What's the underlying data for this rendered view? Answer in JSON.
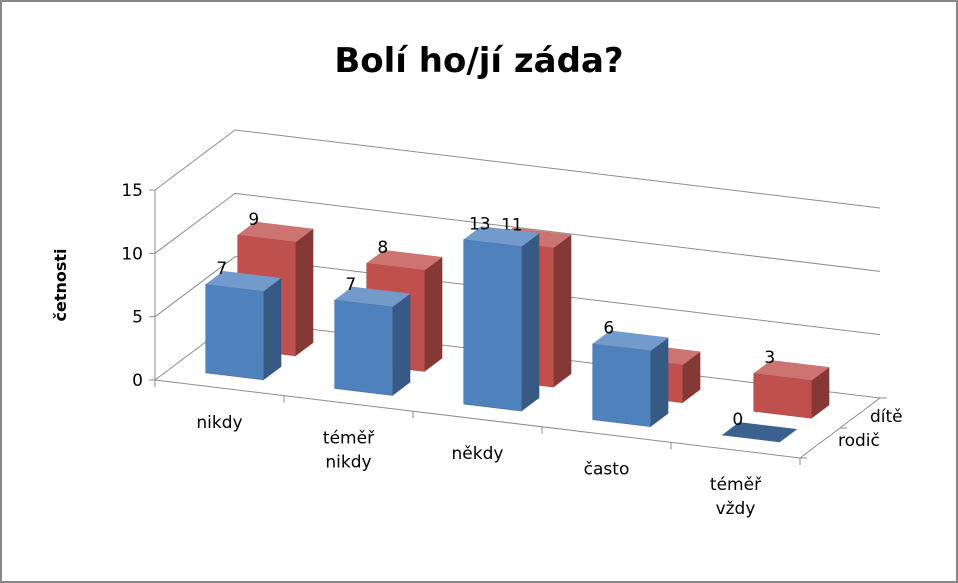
{
  "chart_data": {
    "type": "bar3d",
    "title": "Bolí ho/jí záda?",
    "ylabel": "četnosti",
    "categories": [
      "nikdy",
      "téměř nikdy",
      "někdy",
      "často",
      "téměř vždy"
    ],
    "series": [
      {
        "name": "rodič",
        "color": "#4f81bd",
        "values": [
          7,
          7,
          13,
          6,
          0
        ]
      },
      {
        "name": "dítě",
        "color": "#c0504d",
        "values": [
          9,
          8,
          11,
          3,
          3
        ]
      }
    ],
    "ylim": [
      0,
      15
    ],
    "yticks": [
      0,
      5,
      10,
      15
    ],
    "grid": true
  }
}
